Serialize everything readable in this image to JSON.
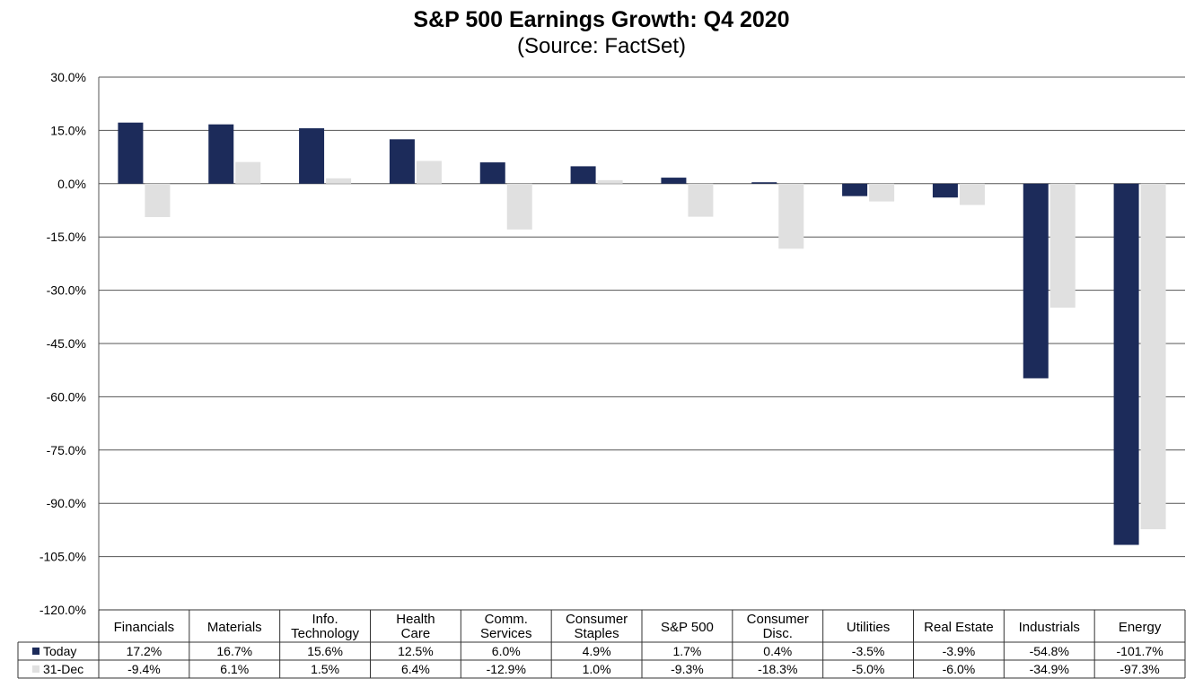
{
  "chart_data": {
    "type": "bar",
    "title": "S&P 500 Earnings Growth: Q4 2020",
    "subtitle": "(Source: FactSet)",
    "categories": [
      [
        "Financials"
      ],
      [
        "Materials"
      ],
      [
        "Info.",
        "Technology"
      ],
      [
        "Health",
        "Care"
      ],
      [
        "Comm.",
        "Services"
      ],
      [
        "Consumer",
        "Staples"
      ],
      [
        "S&P 500"
      ],
      [
        "Consumer",
        "Disc."
      ],
      [
        "Utilities"
      ],
      [
        "Real Estate"
      ],
      [
        "Industrials"
      ],
      [
        "Energy"
      ]
    ],
    "series": [
      {
        "name": "Today",
        "color": "#1c2b5a",
        "values": [
          17.2,
          16.7,
          15.6,
          12.5,
          6.0,
          4.9,
          1.7,
          0.4,
          -3.5,
          -3.9,
          -54.8,
          -101.7
        ],
        "labels": [
          "17.2%",
          "16.7%",
          "15.6%",
          "12.5%",
          "6.0%",
          "4.9%",
          "1.7%",
          "0.4%",
          "-3.5%",
          "-3.9%",
          "-54.8%",
          "-101.7%"
        ]
      },
      {
        "name": "31-Dec",
        "color": "#e0e0e0",
        "values": [
          -9.4,
          6.1,
          1.5,
          6.4,
          -12.9,
          1.0,
          -9.3,
          -18.3,
          -5.0,
          -6.0,
          -34.9,
          -97.3
        ],
        "labels": [
          "-9.4%",
          "6.1%",
          "1.5%",
          "6.4%",
          "-12.9%",
          "1.0%",
          "-9.3%",
          "-18.3%",
          "-5.0%",
          "-6.0%",
          "-34.9%",
          "-97.3%"
        ]
      }
    ],
    "ylim": [
      -120,
      30
    ],
    "yticks": [
      30,
      15,
      0,
      -15,
      -30,
      -45,
      -60,
      -75,
      -90,
      -105,
      -120
    ],
    "ytick_labels": [
      "30.0%",
      "15.0%",
      "0.0%",
      "-15.0%",
      "-30.0%",
      "-45.0%",
      "-60.0%",
      "-75.0%",
      "-90.0%",
      "-105.0%",
      "-120.0%"
    ],
    "grid": true,
    "legend": "data-table"
  }
}
